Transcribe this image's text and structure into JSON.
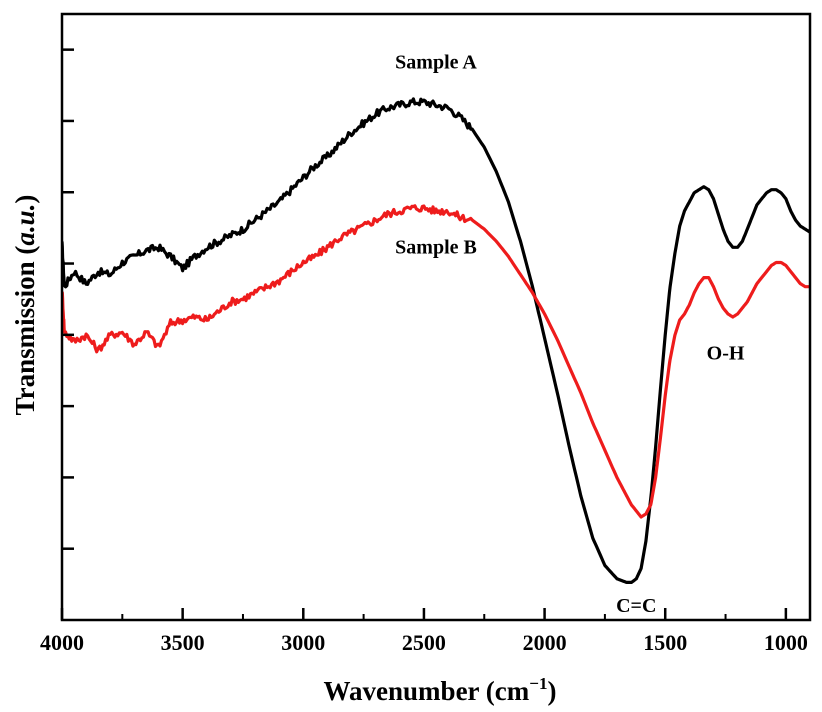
{
  "chart_data": {
    "type": "line",
    "title": "",
    "xlabel_main": "Wavenumber (cm",
    "xlabel_sup": "−1",
    "xlabel_end": ")",
    "ylabel_main": "Transmission (",
    "ylabel_italic": "a.u.",
    "ylabel_end": ")",
    "xlim": [
      4000,
      900
    ],
    "ylim": [
      0,
      1
    ],
    "x_ticks": [
      4000,
      3500,
      3000,
      2500,
      2000,
      1500,
      1000
    ],
    "x_tick_labels": [
      "4000",
      "3500",
      "3000",
      "2500",
      "2000",
      "1500",
      "1000"
    ],
    "y_tick_labels_shown": false,
    "grid": false,
    "series": [
      {
        "name": "Sample A",
        "color": "#000000",
        "x": [
          4000,
          3990,
          3950,
          3900,
          3850,
          3800,
          3750,
          3700,
          3650,
          3600,
          3550,
          3500,
          3450,
          3400,
          3350,
          3300,
          3250,
          3200,
          3150,
          3100,
          3050,
          3000,
          2950,
          2900,
          2850,
          2800,
          2750,
          2700,
          2650,
          2600,
          2550,
          2500,
          2450,
          2400,
          2350,
          2300,
          2250,
          2200,
          2150,
          2100,
          2050,
          2000,
          1950,
          1900,
          1850,
          1800,
          1750,
          1700,
          1680,
          1660,
          1640,
          1620,
          1600,
          1580,
          1560,
          1540,
          1520,
          1500,
          1480,
          1460,
          1440,
          1420,
          1400,
          1380,
          1360,
          1340,
          1320,
          1300,
          1280,
          1260,
          1240,
          1220,
          1200,
          1180,
          1160,
          1140,
          1120,
          1100,
          1080,
          1060,
          1040,
          1020,
          1000,
          980,
          960,
          940,
          920,
          900
        ],
        "y": [
          0.62,
          0.55,
          0.575,
          0.555,
          0.575,
          0.57,
          0.59,
          0.6,
          0.61,
          0.615,
          0.6,
          0.58,
          0.6,
          0.615,
          0.625,
          0.635,
          0.645,
          0.66,
          0.675,
          0.69,
          0.71,
          0.73,
          0.75,
          0.765,
          0.785,
          0.805,
          0.82,
          0.835,
          0.845,
          0.85,
          0.855,
          0.855,
          0.85,
          0.845,
          0.83,
          0.81,
          0.78,
          0.74,
          0.69,
          0.625,
          0.55,
          0.465,
          0.38,
          0.29,
          0.205,
          0.135,
          0.09,
          0.068,
          0.065,
          0.062,
          0.062,
          0.068,
          0.085,
          0.13,
          0.2,
          0.285,
          0.38,
          0.47,
          0.55,
          0.605,
          0.65,
          0.675,
          0.69,
          0.705,
          0.71,
          0.715,
          0.71,
          0.695,
          0.67,
          0.645,
          0.625,
          0.615,
          0.615,
          0.625,
          0.645,
          0.665,
          0.685,
          0.695,
          0.705,
          0.71,
          0.71,
          0.705,
          0.695,
          0.675,
          0.66,
          0.65,
          0.645,
          0.64
        ]
      },
      {
        "name": "Sample B",
        "color": "#ee1c1c",
        "x": [
          4000,
          3990,
          3950,
          3900,
          3850,
          3800,
          3750,
          3700,
          3650,
          3600,
          3550,
          3500,
          3450,
          3400,
          3350,
          3300,
          3250,
          3200,
          3150,
          3100,
          3050,
          3000,
          2950,
          2900,
          2850,
          2800,
          2750,
          2700,
          2650,
          2600,
          2550,
          2500,
          2450,
          2400,
          2350,
          2300,
          2250,
          2200,
          2150,
          2100,
          2050,
          2000,
          1950,
          1900,
          1850,
          1800,
          1750,
          1700,
          1680,
          1660,
          1640,
          1620,
          1600,
          1580,
          1560,
          1540,
          1520,
          1500,
          1480,
          1460,
          1440,
          1420,
          1400,
          1380,
          1360,
          1340,
          1320,
          1300,
          1280,
          1260,
          1240,
          1220,
          1200,
          1180,
          1160,
          1140,
          1120,
          1100,
          1080,
          1060,
          1040,
          1020,
          1000,
          980,
          960,
          940,
          920,
          900
        ],
        "y": [
          0.545,
          0.475,
          0.46,
          0.47,
          0.445,
          0.47,
          0.475,
          0.455,
          0.475,
          0.45,
          0.49,
          0.495,
          0.5,
          0.495,
          0.51,
          0.525,
          0.53,
          0.54,
          0.55,
          0.56,
          0.575,
          0.59,
          0.6,
          0.615,
          0.63,
          0.64,
          0.65,
          0.66,
          0.67,
          0.675,
          0.68,
          0.68,
          0.675,
          0.675,
          0.665,
          0.66,
          0.645,
          0.625,
          0.6,
          0.57,
          0.54,
          0.505,
          0.465,
          0.42,
          0.375,
          0.325,
          0.28,
          0.235,
          0.22,
          0.205,
          0.19,
          0.18,
          0.17,
          0.175,
          0.19,
          0.235,
          0.3,
          0.37,
          0.43,
          0.47,
          0.495,
          0.505,
          0.52,
          0.54,
          0.555,
          0.565,
          0.565,
          0.55,
          0.53,
          0.515,
          0.505,
          0.5,
          0.505,
          0.515,
          0.525,
          0.54,
          0.555,
          0.565,
          0.575,
          0.585,
          0.59,
          0.59,
          0.585,
          0.575,
          0.565,
          0.555,
          0.55,
          0.55
        ]
      }
    ],
    "annotations": [
      {
        "text": "Sample A",
        "series": "Sample A",
        "x": 2450,
        "y": 0.91
      },
      {
        "text": "Sample B",
        "series": "Sample B",
        "x": 2450,
        "y": 0.605
      },
      {
        "text": "C=C",
        "series": "Sample A",
        "x": 1620,
        "y": 0.013
      },
      {
        "text": "O-H",
        "series": "Sample B",
        "x": 1250,
        "y": 0.43
      }
    ]
  }
}
